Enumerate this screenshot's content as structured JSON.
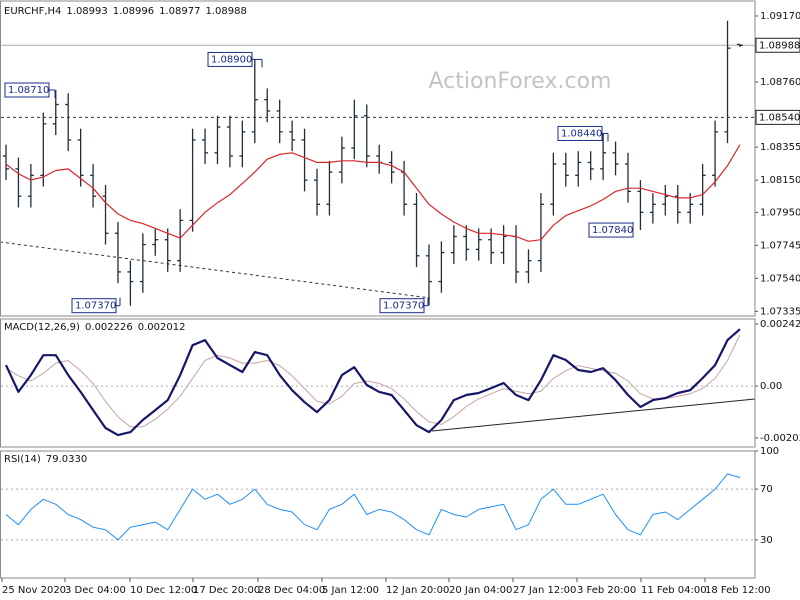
{
  "watermark": "ActionForex.com",
  "x_labels": [
    "25 Nov 2020",
    "3 Dec 04:00",
    "10 Dec 12:00",
    "17 Dec 20:00",
    "28 Dec 04:00",
    "5 Jan 12:00",
    "12 Jan 20:00",
    "20 Jan 04:00",
    "27 Jan 12:00",
    "3 Feb 20:00",
    "11 Feb 04:00",
    "18 Feb 12:00"
  ],
  "chart_data": [
    {
      "type": "candlestick",
      "title": "EURCHF,H4",
      "color": "#1f2d3d",
      "candles": {
        "open": [
          1.083,
          1.0822,
          1.0805,
          1.0818,
          1.085,
          1.0862,
          1.084,
          1.0818,
          1.0805,
          1.0782,
          1.0758,
          1.0752,
          1.0775,
          1.0778,
          1.0765,
          1.079,
          1.084,
          1.0832,
          1.0848,
          1.083,
          1.0845,
          1.0865,
          1.0858,
          1.0845,
          1.084,
          1.0815,
          1.08,
          1.082,
          1.0835,
          1.0855,
          1.083,
          1.0826,
          1.082,
          1.08,
          1.0768,
          1.0752,
          1.077,
          1.078,
          1.0772,
          1.0778,
          1.077,
          1.078,
          1.0758,
          1.0765,
          1.08,
          1.0825,
          1.0818,
          1.0826,
          1.0822,
          1.0832,
          1.0825,
          1.0808,
          1.0795,
          1.08,
          1.0805,
          1.0795,
          1.08,
          1.0818,
          1.0845,
          1.08993
        ],
        "high": [
          1.0837,
          1.0829,
          1.0825,
          1.0857,
          1.0871,
          1.0869,
          1.0847,
          1.0825,
          1.0812,
          1.0789,
          1.0765,
          1.0782,
          1.0785,
          1.0785,
          1.0797,
          1.0847,
          1.0847,
          1.0855,
          1.0855,
          1.0852,
          1.089,
          1.0872,
          1.0865,
          1.0852,
          1.0847,
          1.0822,
          1.0827,
          1.0842,
          1.0865,
          1.0862,
          1.0837,
          1.0833,
          1.0827,
          1.0807,
          1.0775,
          1.0777,
          1.0787,
          1.0787,
          1.0785,
          1.0785,
          1.0787,
          1.0787,
          1.0772,
          1.0807,
          1.0832,
          1.0832,
          1.0833,
          1.0833,
          1.0844,
          1.0839,
          1.0832,
          1.0815,
          1.0807,
          1.0812,
          1.0812,
          1.0807,
          1.0825,
          1.0852,
          1.0914,
          1.08996
        ],
        "low": [
          1.0815,
          1.0798,
          1.0798,
          1.0811,
          1.0843,
          1.0833,
          1.0811,
          1.0798,
          1.0775,
          1.0751,
          1.0737,
          1.0745,
          1.0768,
          1.0758,
          1.0758,
          1.0783,
          1.0825,
          1.0825,
          1.0823,
          1.0823,
          1.0838,
          1.0851,
          1.0838,
          1.0833,
          1.0808,
          1.0793,
          1.0793,
          1.0813,
          1.0828,
          1.0823,
          1.0819,
          1.0813,
          1.0793,
          1.0761,
          1.0737,
          1.0745,
          1.0763,
          1.0765,
          1.0765,
          1.0763,
          1.0763,
          1.0751,
          1.0751,
          1.0758,
          1.0793,
          1.0811,
          1.0811,
          1.0815,
          1.0815,
          1.0818,
          1.0801,
          1.0784,
          1.0788,
          1.0793,
          1.0788,
          1.0788,
          1.0793,
          1.0811,
          1.0838,
          1.08977
        ],
        "close": [
          1.0822,
          1.0805,
          1.0818,
          1.085,
          1.0862,
          1.084,
          1.0818,
          1.0805,
          1.0782,
          1.0758,
          1.0752,
          1.0775,
          1.0778,
          1.0765,
          1.079,
          1.084,
          1.0832,
          1.0848,
          1.083,
          1.0845,
          1.0865,
          1.0858,
          1.0845,
          1.084,
          1.0815,
          1.08,
          1.082,
          1.0835,
          1.0855,
          1.083,
          1.0826,
          1.082,
          1.08,
          1.0768,
          1.0752,
          1.077,
          1.078,
          1.0772,
          1.0778,
          1.077,
          1.078,
          1.0758,
          1.0765,
          1.08,
          1.0825,
          1.0818,
          1.0826,
          1.0822,
          1.0832,
          1.0825,
          1.0808,
          1.0795,
          1.08,
          1.0805,
          1.0795,
          1.08,
          1.0818,
          1.0845,
          1.0897,
          1.08988
        ]
      },
      "series": [
        {
          "color": "#d9262b",
          "values": [
            1.0825,
            1.0819,
            1.0815,
            1.0817,
            1.0821,
            1.0822,
            1.0816,
            1.081,
            1.0801,
            1.0794,
            1.079,
            1.0788,
            1.0785,
            1.0782,
            1.0779,
            1.0787,
            1.0795,
            1.0801,
            1.0806,
            1.0813,
            1.082,
            1.0828,
            1.0831,
            1.0832,
            1.0829,
            1.0826,
            1.0826,
            1.0827,
            1.0827,
            1.0826,
            1.0826,
            1.0824,
            1.082,
            1.081,
            1.08,
            1.0794,
            1.0789,
            1.0785,
            1.0782,
            1.0782,
            1.0781,
            1.078,
            1.0777,
            1.0778,
            1.0787,
            1.0793,
            1.0796,
            1.0799,
            1.0803,
            1.0808,
            1.081,
            1.081,
            1.0808,
            1.0806,
            1.0804,
            1.0804,
            1.0806,
            1.0814,
            1.0824,
            1.0837
          ]
        }
      ],
      "ylim": [
        1.07306,
        1.09263
      ],
      "yticks": [
        {
          "value": 1.0917,
          "label": "1.09170"
        },
        {
          "value": 1.0876,
          "label": "1.08760"
        },
        {
          "value": 1.08355,
          "label": "1.08355"
        },
        {
          "value": 1.0815,
          "label": "1.08150"
        },
        {
          "value": 1.0795,
          "label": "1.07950"
        },
        {
          "value": 1.07745,
          "label": "1.07745"
        },
        {
          "value": 1.0754,
          "label": "1.07540"
        },
        {
          "value": 1.07335,
          "label": "1.07335"
        }
      ],
      "levels": [
        {
          "value": 1.0854,
          "label": "1.08540",
          "style": "dashed"
        },
        {
          "value": 1.08988,
          "label": "1.08988",
          "style": "solid"
        }
      ],
      "annotations": [
        {
          "value": 1.0871,
          "label": "1.08710"
        },
        {
          "value": 1.089,
          "label": "1.08900"
        },
        {
          "value": 1.0737,
          "label": "1.07370"
        },
        {
          "value": 1.0737,
          "label": "1.07370"
        },
        {
          "value": 1.0844,
          "label": "1.08440"
        },
        {
          "value": 1.0784,
          "label": "1.07840"
        }
      ]
    },
    {
      "type": "line",
      "title": "MACD(12,26,9)",
      "series": [
        {
          "color": "#16166b",
          "width": 2.2,
          "values": [
            0.00082,
            -0.00023,
            0.00043,
            0.00121,
            0.00121,
            0.00043,
            -0.00023,
            -0.00094,
            -0.00164,
            -0.00192,
            -0.0018,
            -0.00133,
            -0.00094,
            -0.00055,
            0.00043,
            0.0016,
            0.0018,
            0.0011,
            0.00082,
            0.00055,
            0.00133,
            0.00121,
            0.00043,
            -0.00016,
            -0.00063,
            -0.00102,
            -0.00055,
            0.00043,
            0.00074,
            4e-05,
            -0.00023,
            -0.00035,
            -0.00094,
            -0.00153,
            -0.0018,
            -0.00133,
            -0.00055,
            -0.00035,
            -0.00027,
            -8e-05,
            0.00012,
            -0.00035,
            -0.00055,
            0.00023,
            0.00121,
            0.00102,
            0.00063,
            0.00055,
            0.0007,
            0.00023,
            -0.00035,
            -0.00082,
            -0.00055,
            -0.00047,
            -0.00027,
            -0.00016,
            0.00031,
            0.00082,
            0.0018,
            0.002226
          ]
        },
        {
          "color": "#c9a1a1",
          "width": 1,
          "values": [
            0.0007,
            0.0004,
            0.0002,
            0.0005,
            0.0009,
            0.001,
            0.0006,
            0.0001,
            -0.0006,
            -0.0012,
            -0.0016,
            -0.0016,
            -0.0013,
            -0.0009,
            -0.0004,
            0.0003,
            0.001,
            0.0012,
            0.0011,
            0.0009,
            0.0009,
            0.001,
            0.0008,
            0.0004,
            -0.0001,
            -0.0006,
            -0.0007,
            -0.0004,
            0.0001,
            0.0002,
            0.0001,
            -0.0001,
            -0.0005,
            -0.001,
            -0.0014,
            -0.0015,
            -0.0012,
            -0.0008,
            -0.0005,
            -0.0003,
            -0.0001,
            -0.0002,
            -0.0003,
            -0.0002,
            0.0003,
            0.0006,
            0.0008,
            0.0007,
            0.0006,
            0.0005,
            0.0002,
            -0.0003,
            -0.0005,
            -0.0005,
            -0.0004,
            -0.0003,
            -0.0001,
            0.0003,
            0.001,
            0.002012
          ]
        }
      ],
      "ylim": [
        -0.002385,
        0.002625
      ],
      "yticks": [
        0.002429,
        {
          "value": 0,
          "label": "0.00"
        },
        -0.002033
      ],
      "levels": [
        0
      ]
    },
    {
      "type": "line",
      "title": "RSI(14)",
      "last_value_label": "79.0330",
      "series": [
        {
          "color": "#1e90ff",
          "width": 1,
          "values": [
            50,
            42,
            54,
            62,
            58,
            50,
            46,
            40,
            38,
            30,
            40,
            42,
            44,
            38,
            54,
            70,
            62,
            66,
            58,
            62,
            70,
            58,
            54,
            52,
            42,
            38,
            54,
            58,
            66,
            50,
            54,
            52,
            46,
            38,
            34,
            54,
            50,
            48,
            54,
            56,
            58,
            38,
            42,
            62,
            70,
            58,
            58,
            62,
            66,
            50,
            38,
            34,
            50,
            52,
            46,
            54,
            62,
            70,
            82,
            79.033
          ]
        }
      ],
      "ylim": [
        0,
        100
      ],
      "yticks": [
        100,
        70,
        30
      ],
      "levels": [
        70,
        30
      ]
    }
  ]
}
